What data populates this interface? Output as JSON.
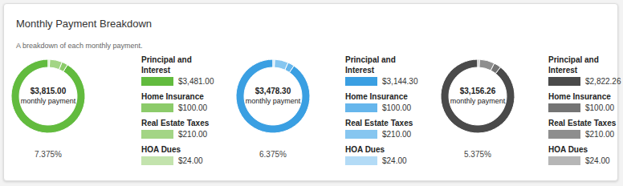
{
  "title": "Monthly Payment Breakdown",
  "subtitle": "A breakdown of each monthly payment.",
  "chart_data": [
    {
      "type": "pie",
      "center_label": "$3,815.00",
      "center_sublabel": "monthly payment",
      "caption": "7.375%",
      "categories": [
        "Principal and Interest",
        "Home Insurance",
        "Real Estate Taxes",
        "HOA Dues"
      ],
      "values": [
        3481.0,
        100.0,
        210.0,
        24.0
      ],
      "value_labels": [
        "$3,481.00",
        "$100.00",
        "$210.00",
        "$24.00"
      ],
      "colors": [
        "#62bb3e",
        "#8ccb6a",
        "#a3d585",
        "#c3e3ad"
      ]
    },
    {
      "type": "pie",
      "center_label": "$3,478.30",
      "center_sublabel": "monthly payment",
      "caption": "6.375%",
      "categories": [
        "Principal and Interest",
        "Home Insurance",
        "Real Estate Taxes",
        "HOA Dues"
      ],
      "values": [
        3144.3,
        100.0,
        210.0,
        24.0
      ],
      "value_labels": [
        "$3,144.30",
        "$100.00",
        "$210.00",
        "$24.00"
      ],
      "colors": [
        "#3a9fe2",
        "#66b6ec",
        "#86c6f0",
        "#b3dbf6"
      ]
    },
    {
      "type": "pie",
      "center_label": "$3,156.26",
      "center_sublabel": "monthly payment",
      "caption": "5.375%",
      "categories": [
        "Principal and Interest",
        "Home Insurance",
        "Real Estate Taxes",
        "HOA Dues"
      ],
      "values": [
        2822.26,
        100.0,
        210.0,
        24.0
      ],
      "value_labels": [
        "$2,822.26",
        "$100.00",
        "$210.00",
        "$24.00"
      ],
      "colors": [
        "#4a4a4a",
        "#747474",
        "#8e8e8e",
        "#b6b6b6"
      ]
    }
  ]
}
